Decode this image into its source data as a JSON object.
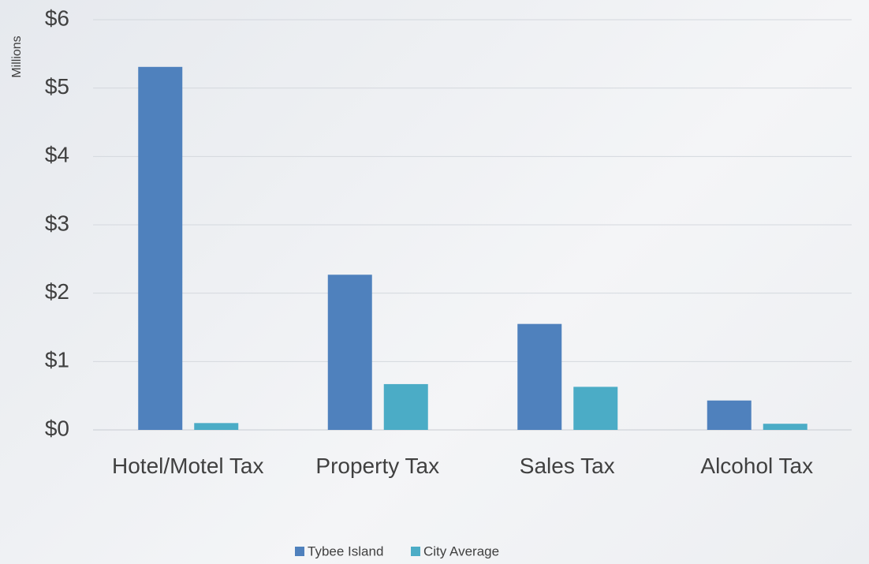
{
  "chart_data": {
    "type": "bar",
    "y_axis_label": "Millions",
    "categories": [
      "Hotel/Motel Tax",
      "Property Tax",
      "Sales Tax",
      "Alcohol Tax"
    ],
    "series": [
      {
        "name": "Tybee Island",
        "color": "#4f81bd",
        "values": [
          5.31,
          2.27,
          1.55,
          0.43
        ]
      },
      {
        "name": "City Average",
        "color": "#4bacc6",
        "values": [
          0.1,
          0.67,
          0.63,
          0.09
        ]
      }
    ],
    "ylim": [
      0,
      6
    ],
    "yticks": [
      {
        "value": 0,
        "label": "$0"
      },
      {
        "value": 1,
        "label": "$1"
      },
      {
        "value": 2,
        "label": "$2"
      },
      {
        "value": 3,
        "label": "$3"
      },
      {
        "value": 4,
        "label": "$4"
      },
      {
        "value": 5,
        "label": "$5"
      },
      {
        "value": 6,
        "label": "$6"
      }
    ],
    "grid": true,
    "legend": "bottom"
  }
}
